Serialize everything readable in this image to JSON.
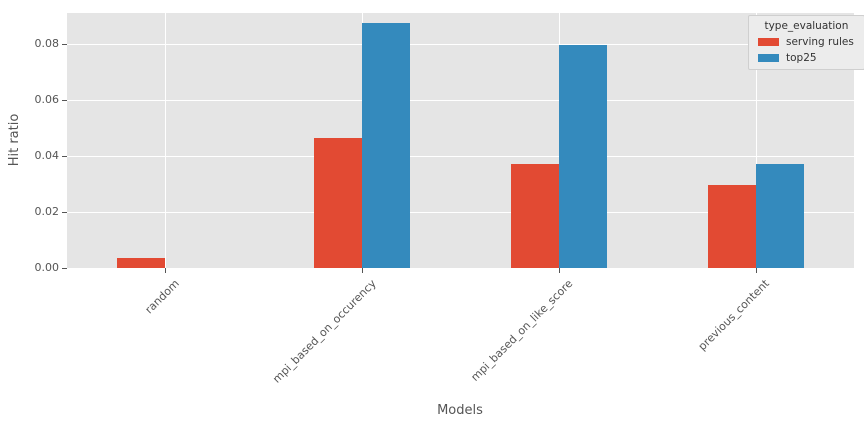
{
  "chart_data": {
    "type": "bar",
    "title": "",
    "xlabel": "Models",
    "ylabel": "Hit ratio",
    "categories": [
      "random",
      "mpi_based_on_occurency",
      "mpi_based_on_like_score",
      "previous_content"
    ],
    "series": [
      {
        "name": "serving rules",
        "color": "#E24A33",
        "values": [
          0.0035,
          0.0465,
          0.0373,
          0.0297
        ]
      },
      {
        "name": "top25",
        "color": "#348ABD",
        "values": [
          0.0,
          0.0875,
          0.0795,
          0.0373
        ]
      }
    ],
    "ylim": [
      0,
      0.0911
    ],
    "yticks": [
      {
        "value": 0.0,
        "label": "0.00"
      },
      {
        "value": 0.02,
        "label": "0.02"
      },
      {
        "value": 0.04,
        "label": "0.04"
      },
      {
        "value": 0.06,
        "label": "0.06"
      },
      {
        "value": 0.08,
        "label": "0.08"
      }
    ],
    "grid": true,
    "legend": {
      "title": "type_evaluation",
      "position": "upper right"
    },
    "style": {
      "figure_bg": "#FFFFFF",
      "plot_bg": "#E5E5E5",
      "grid_color": "#FFFFFF",
      "tick_text_color": "#555555",
      "axis_label_color": "#555555",
      "tick_mark_color": "#555555",
      "legend_text_color": "#333333",
      "legend_bg": "#ECECEC",
      "legend_border": "#CFCFCF"
    }
  }
}
